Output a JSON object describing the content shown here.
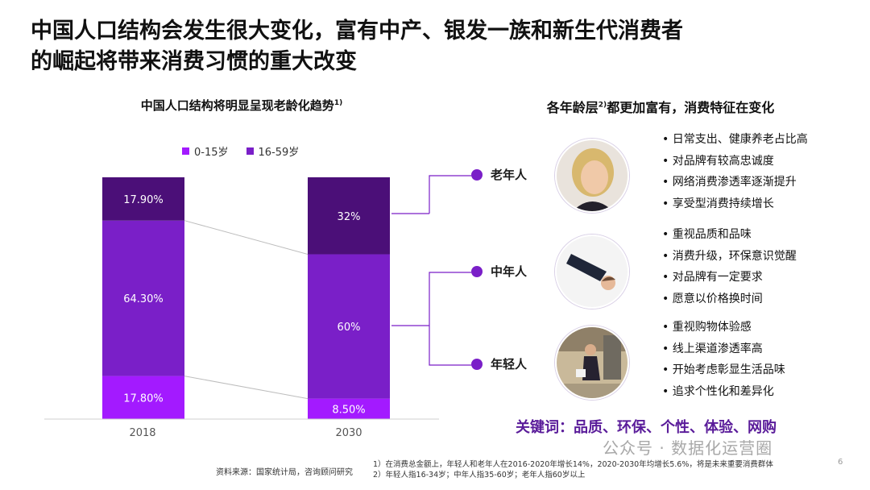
{
  "title_line1": "中国人口结构会发生很大变化，富有中产、银发一族和新生代消费者",
  "title_line2": "的崛起将带来消费习惯的重大改变",
  "left_subtitle": "中国人口结构将明显呈现老龄化趋势",
  "left_subtitle_note": "1)",
  "right_subtitle_a": "各年龄层",
  "right_subtitle_note": "2)",
  "right_subtitle_b": "都更加富有，消费特征在变化",
  "colors": {
    "age_0_15": "#a31aff",
    "age_16_59": "#7a1fc8",
    "age_60_plus": "#4b0f78",
    "accent": "#7a1fc8"
  },
  "chart_data": {
    "type": "bar",
    "stacked": true,
    "categories": [
      "2018",
      "2030"
    ],
    "legend": [
      "0-15岁",
      "16-59岁"
    ],
    "series": [
      {
        "name": "0-15岁",
        "values": [
          17.8,
          8.5
        ],
        "labels": [
          "17.80%",
          "8.50%"
        ]
      },
      {
        "name": "16-59岁",
        "values": [
          64.3,
          60
        ],
        "labels": [
          "64.30%",
          "60%"
        ]
      },
      {
        "values": [
          17.9,
          32
        ],
        "labels": [
          "17.90%",
          "32%"
        ]
      }
    ],
    "ylim": [
      0,
      100
    ]
  },
  "groups": [
    {
      "label": "老年人",
      "photo": "elderly-woman-photo",
      "bullets": [
        "日常支出、健康养老占比高",
        "对品牌有较高忠诚度",
        "网络消费渗透率逐渐提升",
        "享受型消费持续增长"
      ]
    },
    {
      "label": "中年人",
      "photo": "businessman-photo",
      "bullets": [
        "重视品质和品味",
        "消费升级，环保意识觉醒",
        "对品牌有一定要求",
        "愿意以价格换时间"
      ]
    },
    {
      "label": "年轻人",
      "photo": "young-shopper-photo",
      "bullets": [
        "重视购物体验感",
        "线上渠道渗透率高",
        "开始考虑彰显生活品味",
        "追求个性化和差异化"
      ]
    }
  ],
  "keywords": "关键词：品质、环保、个性、体验、网购",
  "source": "资料来源：国家统计局，咨询顾问研究",
  "note1": "1）在消费总金额上，年轻人和老年人在2016-2020年增长14%，2020-2030年均增长5.6%，将是未来重要消费群体",
  "note2": "2）年轻人指16-34岁；中年人指35-60岁；老年人指60岁以上",
  "watermark": "公众号 · 数据化运营圈",
  "page_number": "6"
}
